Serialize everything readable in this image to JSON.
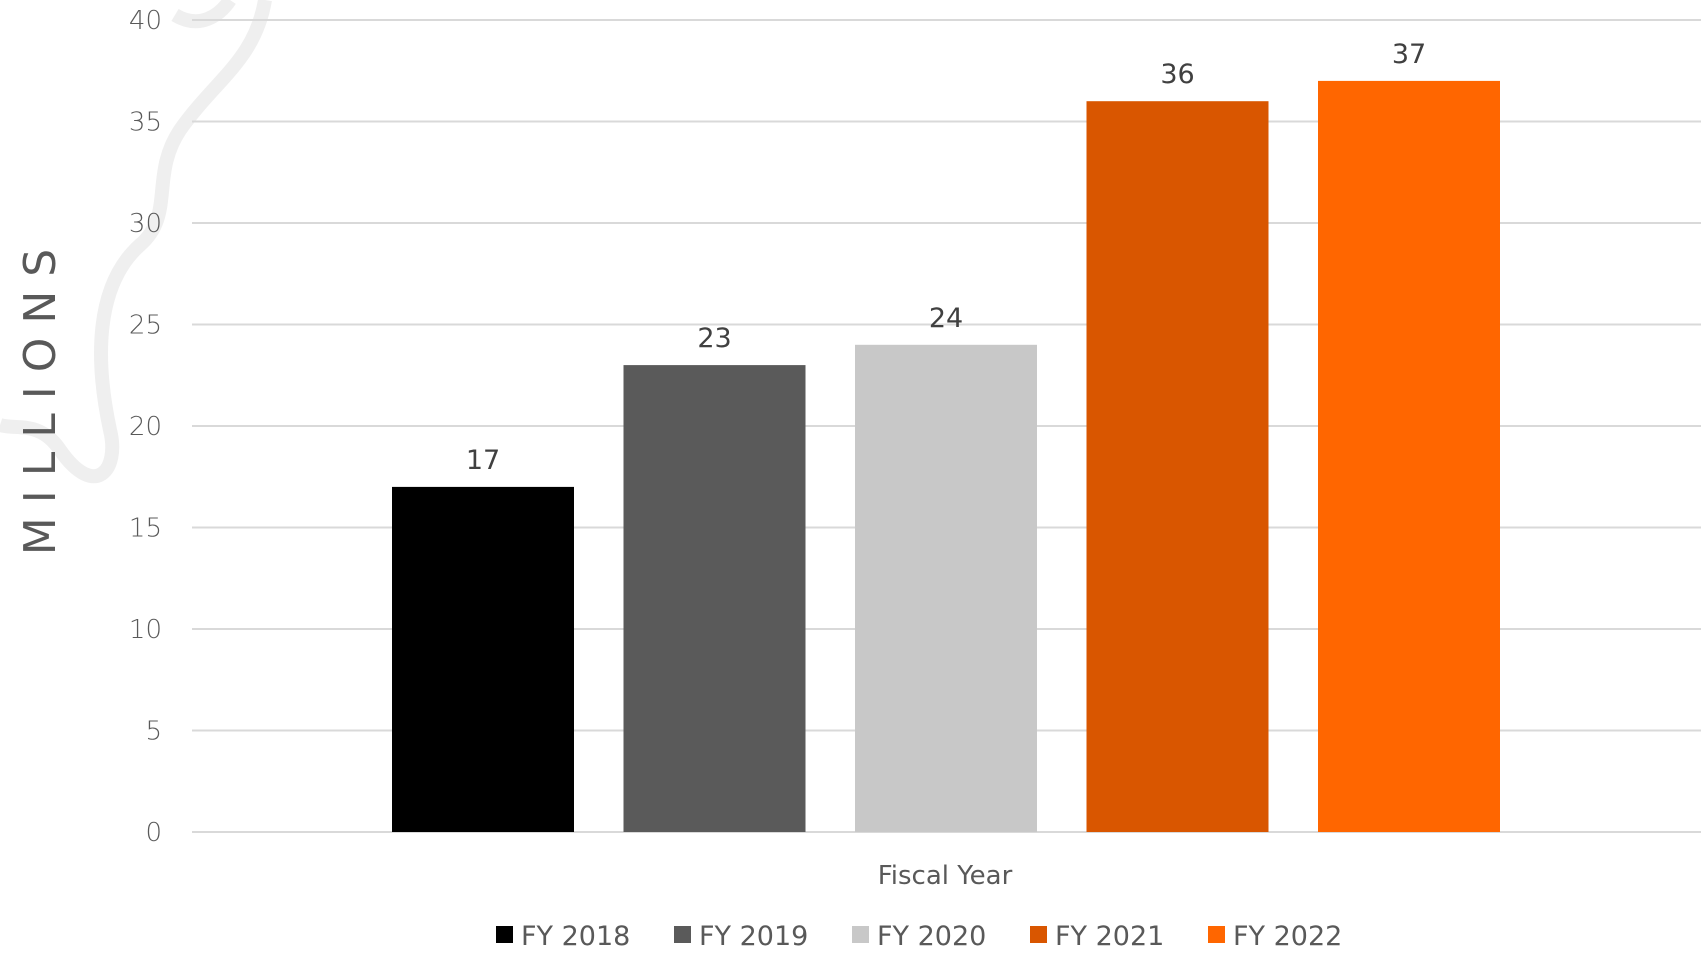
{
  "chart_data": {
    "type": "bar",
    "title": "",
    "xlabel": "Fiscal Year",
    "ylabel": "MILLIONS",
    "ylim": [
      0,
      40
    ],
    "yticks": [
      0,
      5,
      10,
      15,
      20,
      25,
      30,
      35,
      40
    ],
    "grid": true,
    "legend_position": "bottom",
    "series": [
      {
        "name": "FY 2018",
        "value": 17,
        "label": "17",
        "color": "#000000"
      },
      {
        "name": "FY 2019",
        "value": 23,
        "label": "23",
        "color": "#5a5a5a"
      },
      {
        "name": "FY 2020",
        "value": 24,
        "label": "24",
        "color": "#c8c8c8"
      },
      {
        "name": "FY 2021",
        "value": 36,
        "label": "36",
        "color": "#d95600"
      },
      {
        "name": "FY 2022",
        "value": 37,
        "label": "37",
        "color": "#ff6600"
      }
    ]
  }
}
